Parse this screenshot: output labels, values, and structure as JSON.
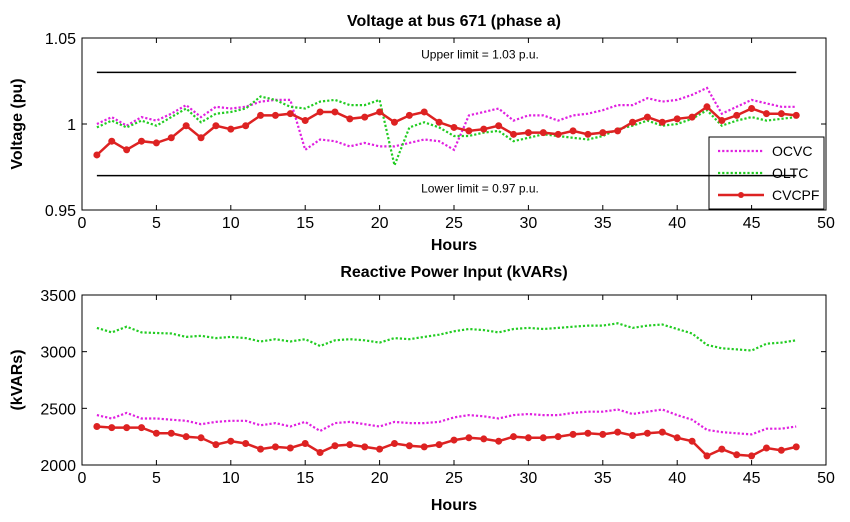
{
  "chart_data": [
    {
      "type": "line",
      "title": "Voltage at bus 671 (phase a)",
      "xlabel": "Hours",
      "ylabel": "Voltage (pu)",
      "xlim": [
        0,
        50
      ],
      "ylim": [
        0.95,
        1.05
      ],
      "xticks": [
        0,
        5,
        10,
        15,
        20,
        25,
        30,
        35,
        40,
        45,
        50
      ],
      "yticks": [
        0.95,
        1,
        1.05
      ],
      "ytick_labels": [
        "0.95",
        "1",
        "1.05"
      ],
      "grid": false,
      "legend_position": "right-bottom",
      "annotations": [
        {
          "text": "Upper limit = 1.03 p.u.",
          "y": 1.03
        },
        {
          "text": "Lower limit = 0.97 p.u.",
          "y": 0.97
        }
      ],
      "x": [
        1,
        2,
        3,
        4,
        5,
        6,
        7,
        8,
        9,
        10,
        11,
        12,
        13,
        14,
        15,
        16,
        17,
        18,
        19,
        20,
        21,
        22,
        23,
        24,
        25,
        26,
        27,
        28,
        29,
        30,
        31,
        32,
        33,
        34,
        35,
        36,
        37,
        38,
        39,
        40,
        41,
        42,
        43,
        44,
        45,
        46,
        47,
        48
      ],
      "series": [
        {
          "name": "OCVC",
          "color": "#e020e0",
          "style": "dotted",
          "values": [
            1.0,
            1.004,
            0.999,
            1.004,
            1.002,
            1.006,
            1.011,
            1.004,
            1.01,
            1.009,
            1.01,
            1.013,
            1.014,
            1.014,
            0.985,
            0.991,
            0.99,
            0.987,
            0.989,
            0.987,
            0.987,
            0.989,
            0.991,
            0.99,
            0.985,
            1.005,
            1.007,
            1.009,
            1.002,
            1.005,
            1.005,
            1.002,
            1.005,
            1.006,
            1.008,
            1.011,
            1.011,
            1.015,
            1.013,
            1.014,
            1.017,
            1.021,
            1.006,
            1.01,
            1.014,
            1.012,
            1.01,
            1.01
          ]
        },
        {
          "name": "OLTC",
          "color": "#22cc22",
          "style": "dotted",
          "values": [
            0.998,
            1.002,
            0.998,
            1.002,
            0.999,
            1.004,
            1.009,
            1.001,
            1.006,
            1.007,
            1.009,
            1.016,
            1.014,
            1.01,
            1.009,
            1.013,
            1.014,
            1.011,
            1.011,
            1.014,
            0.976,
            0.998,
            1.001,
            0.998,
            0.993,
            0.993,
            0.995,
            0.996,
            0.99,
            0.992,
            0.994,
            0.993,
            0.992,
            0.991,
            0.993,
            0.997,
            0.999,
            1.002,
            0.999,
            1.0,
            1.003,
            1.008,
            0.999,
            1.002,
            1.004,
            1.002,
            1.003,
            1.004
          ]
        },
        {
          "name": "CVCPF",
          "color": "#dd2222",
          "style": "solid-marker",
          "values": [
            0.982,
            0.99,
            0.985,
            0.99,
            0.989,
            0.992,
            0.999,
            0.992,
            0.999,
            0.997,
            0.999,
            1.005,
            1.005,
            1.006,
            1.002,
            1.007,
            1.007,
            1.003,
            1.004,
            1.007,
            1.001,
            1.005,
            1.007,
            1.001,
            0.998,
            0.996,
            0.997,
            0.999,
            0.994,
            0.995,
            0.995,
            0.994,
            0.996,
            0.994,
            0.995,
            0.996,
            1.001,
            1.004,
            1.001,
            1.003,
            1.004,
            1.01,
            1.002,
            1.005,
            1.009,
            1.006,
            1.006,
            1.005
          ]
        }
      ]
    },
    {
      "type": "line",
      "title": "Reactive Power Input (kVARs)",
      "xlabel": "Hours",
      "ylabel": "(kVARs)",
      "xlim": [
        0,
        50
      ],
      "ylim": [
        2000,
        3500
      ],
      "xticks": [
        0,
        5,
        10,
        15,
        20,
        25,
        30,
        35,
        40,
        45,
        50
      ],
      "yticks": [
        2000,
        2500,
        3000,
        3500
      ],
      "ytick_labels": [
        "2000",
        "2500",
        "3000",
        "3500"
      ],
      "grid": false,
      "x": [
        1,
        2,
        3,
        4,
        5,
        6,
        7,
        8,
        9,
        10,
        11,
        12,
        13,
        14,
        15,
        16,
        17,
        18,
        19,
        20,
        21,
        22,
        23,
        24,
        25,
        26,
        27,
        28,
        29,
        30,
        31,
        32,
        33,
        34,
        35,
        36,
        37,
        38,
        39,
        40,
        41,
        42,
        43,
        44,
        45,
        46,
        47,
        48
      ],
      "series": [
        {
          "color": "#22cc22",
          "style": "dotted",
          "values": [
            3210,
            3170,
            3220,
            3170,
            3165,
            3160,
            3130,
            3140,
            3120,
            3130,
            3120,
            3090,
            3110,
            3090,
            3110,
            3050,
            3100,
            3110,
            3100,
            3080,
            3120,
            3110,
            3130,
            3150,
            3180,
            3200,
            3190,
            3170,
            3200,
            3210,
            3200,
            3210,
            3220,
            3230,
            3230,
            3250,
            3210,
            3230,
            3240,
            3200,
            3160,
            3060,
            3030,
            3020,
            3010,
            3070,
            3080,
            3100
          ]
        },
        {
          "color": "#e020e0",
          "style": "dotted",
          "values": [
            2440,
            2410,
            2460,
            2410,
            2410,
            2400,
            2390,
            2360,
            2380,
            2390,
            2390,
            2350,
            2370,
            2340,
            2380,
            2300,
            2370,
            2380,
            2360,
            2340,
            2380,
            2370,
            2370,
            2380,
            2420,
            2440,
            2430,
            2410,
            2440,
            2450,
            2440,
            2440,
            2460,
            2470,
            2470,
            2490,
            2450,
            2470,
            2490,
            2440,
            2400,
            2310,
            2290,
            2280,
            2270,
            2320,
            2320,
            2340
          ]
        },
        {
          "color": "#dd2222",
          "style": "solid-marker",
          "values": [
            2340,
            2330,
            2330,
            2330,
            2280,
            2280,
            2250,
            2240,
            2180,
            2210,
            2190,
            2140,
            2160,
            2150,
            2190,
            2110,
            2170,
            2180,
            2160,
            2140,
            2190,
            2170,
            2160,
            2180,
            2220,
            2240,
            2230,
            2210,
            2250,
            2240,
            2240,
            2250,
            2270,
            2280,
            2270,
            2290,
            2260,
            2280,
            2290,
            2240,
            2210,
            2080,
            2140,
            2090,
            2080,
            2150,
            2130,
            2160
          ]
        }
      ]
    }
  ]
}
